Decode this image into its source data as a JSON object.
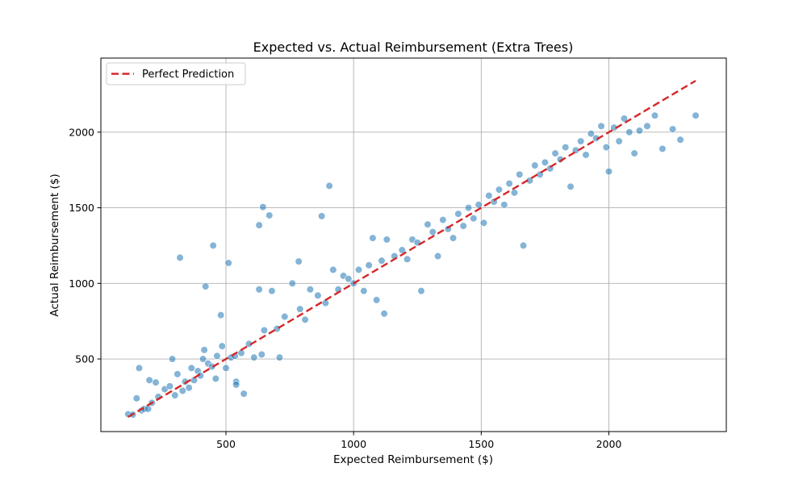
{
  "chart_data": {
    "type": "scatter",
    "title": "Expected vs. Actual Reimbursement (Extra Trees)",
    "xlabel": "Expected Reimbursement ($)",
    "ylabel": "Actual Reimbursement ($)",
    "xlim": [
      10,
      2460
    ],
    "ylim": [
      20,
      2490
    ],
    "xticks": [
      500,
      1000,
      1500,
      2000
    ],
    "yticks": [
      500,
      1000,
      1500,
      2000
    ],
    "grid": true,
    "legend_position": "top-left",
    "colors": {
      "points": "#1f77b4",
      "reference_line": "#d62728"
    },
    "reference_line": {
      "name": "Perfect Prediction",
      "x": [
        117,
        2340
      ],
      "y": [
        117,
        2340
      ]
    },
    "series": [
      {
        "values": [
          [
            117,
            135
          ],
          [
            135,
            132
          ],
          [
            150,
            240
          ],
          [
            160,
            440
          ],
          [
            170,
            160
          ],
          [
            180,
            170
          ],
          [
            195,
            170
          ],
          [
            200,
            360
          ],
          [
            210,
            210
          ],
          [
            225,
            345
          ],
          [
            235,
            250
          ],
          [
            260,
            300
          ],
          [
            280,
            320
          ],
          [
            290,
            500
          ],
          [
            300,
            260
          ],
          [
            310,
            400
          ],
          [
            320,
            1170
          ],
          [
            330,
            290
          ],
          [
            340,
            350
          ],
          [
            355,
            310
          ],
          [
            365,
            440
          ],
          [
            375,
            360
          ],
          [
            390,
            420
          ],
          [
            400,
            390
          ],
          [
            410,
            500
          ],
          [
            415,
            560
          ],
          [
            420,
            980
          ],
          [
            430,
            470
          ],
          [
            445,
            450
          ],
          [
            450,
            1250
          ],
          [
            460,
            370
          ],
          [
            465,
            520
          ],
          [
            480,
            790
          ],
          [
            485,
            585
          ],
          [
            500,
            440
          ],
          [
            510,
            1135
          ],
          [
            520,
            510
          ],
          [
            535,
            520
          ],
          [
            540,
            350
          ],
          [
            540,
            330
          ],
          [
            560,
            540
          ],
          [
            570,
            270
          ],
          [
            590,
            600
          ],
          [
            610,
            510
          ],
          [
            630,
            1385
          ],
          [
            630,
            960
          ],
          [
            640,
            530
          ],
          [
            645,
            1505
          ],
          [
            650,
            690
          ],
          [
            670,
            1450
          ],
          [
            680,
            950
          ],
          [
            700,
            700
          ],
          [
            710,
            510
          ],
          [
            730,
            780
          ],
          [
            760,
            1000
          ],
          [
            785,
            1145
          ],
          [
            790,
            830
          ],
          [
            810,
            760
          ],
          [
            830,
            960
          ],
          [
            860,
            920
          ],
          [
            875,
            1445
          ],
          [
            890,
            870
          ],
          [
            905,
            1645
          ],
          [
            920,
            1090
          ],
          [
            940,
            960
          ],
          [
            960,
            1050
          ],
          [
            980,
            1030
          ],
          [
            1000,
            1000
          ],
          [
            1020,
            1090
          ],
          [
            1040,
            950
          ],
          [
            1060,
            1120
          ],
          [
            1075,
            1300
          ],
          [
            1090,
            890
          ],
          [
            1110,
            1150
          ],
          [
            1120,
            800
          ],
          [
            1130,
            1290
          ],
          [
            1160,
            1180
          ],
          [
            1190,
            1220
          ],
          [
            1210,
            1160
          ],
          [
            1230,
            1290
          ],
          [
            1250,
            1270
          ],
          [
            1265,
            950
          ],
          [
            1290,
            1390
          ],
          [
            1310,
            1340
          ],
          [
            1330,
            1180
          ],
          [
            1350,
            1420
          ],
          [
            1370,
            1360
          ],
          [
            1390,
            1300
          ],
          [
            1410,
            1460
          ],
          [
            1430,
            1380
          ],
          [
            1450,
            1500
          ],
          [
            1470,
            1430
          ],
          [
            1490,
            1520
          ],
          [
            1510,
            1400
          ],
          [
            1530,
            1580
          ],
          [
            1550,
            1540
          ],
          [
            1570,
            1620
          ],
          [
            1590,
            1520
          ],
          [
            1610,
            1660
          ],
          [
            1630,
            1600
          ],
          [
            1650,
            1720
          ],
          [
            1665,
            1250
          ],
          [
            1690,
            1680
          ],
          [
            1710,
            1780
          ],
          [
            1730,
            1720
          ],
          [
            1750,
            1800
          ],
          [
            1770,
            1760
          ],
          [
            1790,
            1860
          ],
          [
            1810,
            1820
          ],
          [
            1830,
            1900
          ],
          [
            1850,
            1640
          ],
          [
            1870,
            1880
          ],
          [
            1890,
            1940
          ],
          [
            1910,
            1850
          ],
          [
            1930,
            1990
          ],
          [
            1950,
            1960
          ],
          [
            1970,
            2040
          ],
          [
            1990,
            1900
          ],
          [
            2000,
            1740
          ],
          [
            2020,
            2030
          ],
          [
            2040,
            1940
          ],
          [
            2060,
            2090
          ],
          [
            2080,
            2000
          ],
          [
            2100,
            1860
          ],
          [
            2120,
            2010
          ],
          [
            2150,
            2040
          ],
          [
            2180,
            2110
          ],
          [
            2210,
            1890
          ],
          [
            2250,
            2020
          ],
          [
            2280,
            1950
          ],
          [
            2340,
            2110
          ]
        ]
      }
    ]
  }
}
